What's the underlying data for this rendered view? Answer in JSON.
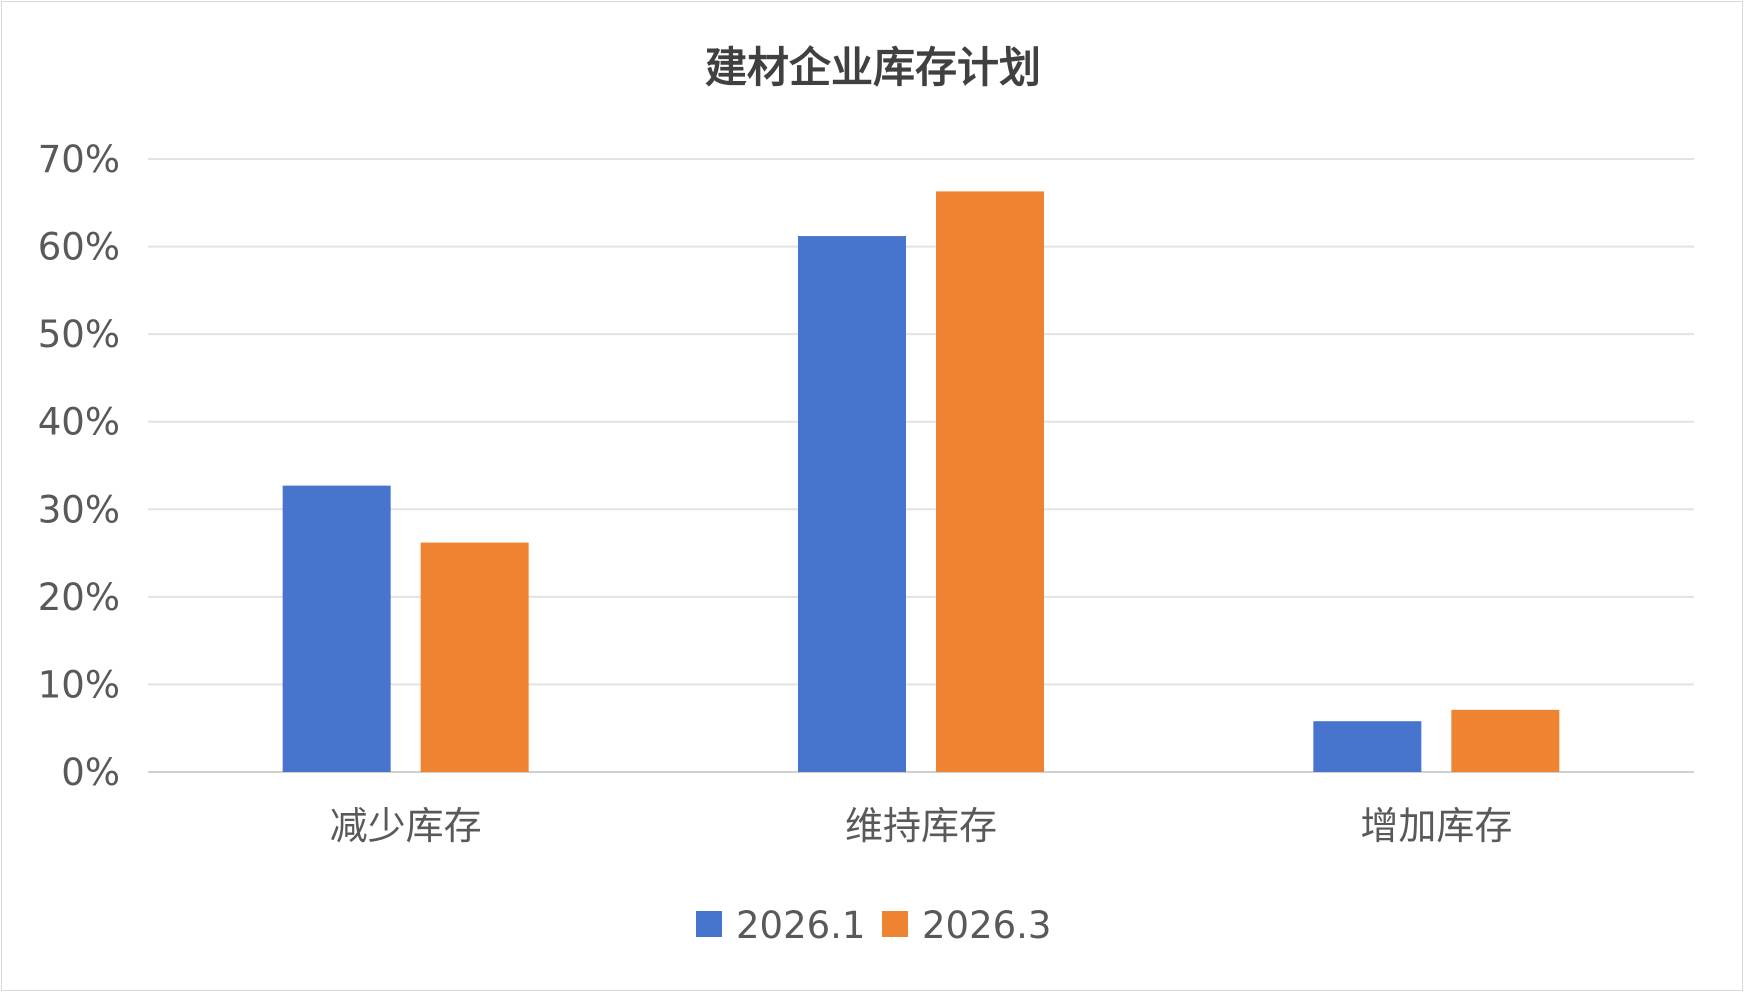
{
  "chart_data": {
    "type": "bar",
    "title": "建材企业库存计划",
    "categories": [
      "减少库存",
      "维持库存",
      "增加库存"
    ],
    "series": [
      {
        "name": "2026.1",
        "values": [
          32.7,
          61.2,
          5.8
        ],
        "color": "#4774cc"
      },
      {
        "name": "2026.3",
        "values": [
          26.2,
          66.3,
          7.1
        ],
        "color": "#ee8432"
      }
    ],
    "y_ticks": [
      "0%",
      "10%",
      "20%",
      "30%",
      "40%",
      "50%",
      "60%",
      "70%"
    ],
    "ylim": [
      0,
      70
    ],
    "y_unit": "%",
    "grid": true,
    "legend_position": "bottom"
  }
}
